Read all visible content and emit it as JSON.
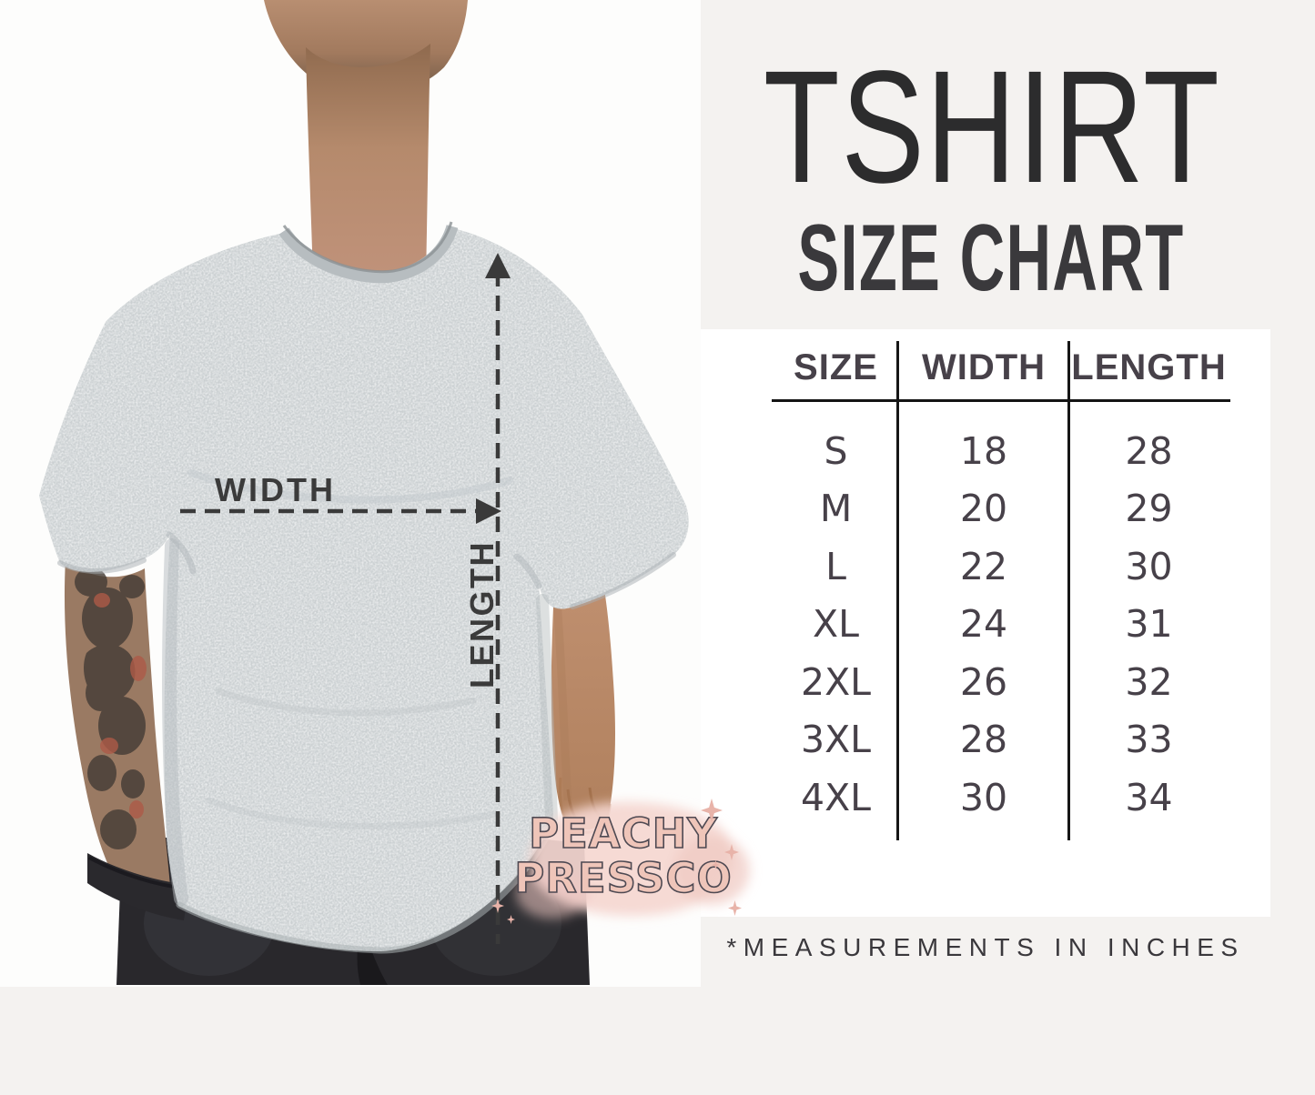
{
  "header": {
    "title": "TSHIRT",
    "subtitle": "SIZE CHART"
  },
  "photo": {
    "width_label": "WIDTH",
    "length_label": "LENGTH"
  },
  "size_table": {
    "columns": [
      "SIZE",
      "WIDTH",
      "LENGTH"
    ],
    "rows": [
      {
        "size": "S",
        "width": "18",
        "length": "28"
      },
      {
        "size": "M",
        "width": "20",
        "length": "29"
      },
      {
        "size": "L",
        "width": "22",
        "length": "30"
      },
      {
        "size": "XL",
        "width": "24",
        "length": "31"
      },
      {
        "size": "2XL",
        "width": "26",
        "length": "32"
      },
      {
        "size": "3XL",
        "width": "28",
        "length": "33"
      },
      {
        "size": "4XL",
        "width": "30",
        "length": "34"
      }
    ]
  },
  "footnote": "*MEASUREMENTS IN INCHES",
  "watermark": {
    "line1": "PEACHY",
    "line2": "PRESSCO"
  },
  "colors": {
    "page_background": "#f4f2f0",
    "card_background": "#ffffff",
    "title_text": "#2c2c2d",
    "table_text": "#474149",
    "annotation": "#3a3a3a",
    "watermark_pink": "#efc5b9",
    "watermark_splash": "#f5d7d0",
    "shirt_gray": "#cbd0d2"
  },
  "chart_data": {
    "type": "table",
    "title": "TSHIRT SIZE CHART",
    "columns": [
      "SIZE",
      "WIDTH",
      "LENGTH"
    ],
    "rows": [
      [
        "S",
        18,
        28
      ],
      [
        "M",
        20,
        29
      ],
      [
        "L",
        22,
        30
      ],
      [
        "XL",
        24,
        31
      ],
      [
        "2XL",
        26,
        32
      ],
      [
        "3XL",
        28,
        33
      ],
      [
        "4XL",
        30,
        34
      ]
    ],
    "units": "inches",
    "note": "*MEASUREMENTS IN INCHES"
  }
}
